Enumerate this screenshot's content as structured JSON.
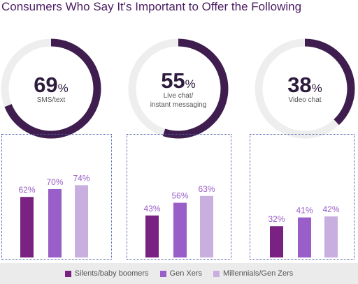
{
  "title": "Consumers Who Say It's Important to Offer the Following",
  "colors": {
    "ring_track": "#eeeeee",
    "ring_fill": "#3f1d4f",
    "series": [
      "#7a2281",
      "#9a5ec8",
      "#c9aee0"
    ],
    "panel_border": "#4a5fa8",
    "value_label": "#9a5ec8"
  },
  "chart_data": [
    {
      "type": "donut",
      "value": 69,
      "value_text": "69",
      "unit": "%",
      "label": [
        "SMS/text"
      ]
    },
    {
      "type": "donut",
      "value": 55,
      "value_text": "55",
      "unit": "%",
      "label": [
        "Live chat/",
        "instant messaging"
      ]
    },
    {
      "type": "donut",
      "value": 38,
      "value_text": "38",
      "unit": "%",
      "label": [
        "Video chat"
      ]
    },
    {
      "type": "bar",
      "series": [
        {
          "name": "Silents/baby boomers",
          "values": [
            62
          ]
        },
        {
          "name": "Gen Xers",
          "values": [
            70
          ]
        },
        {
          "name": "Millennials/Gen Zers",
          "values": [
            74
          ]
        }
      ],
      "value_labels": [
        "62%",
        "70%",
        "74%"
      ],
      "ylim": [
        0,
        100
      ]
    },
    {
      "type": "bar",
      "series": [
        {
          "name": "Silents/baby boomers",
          "values": [
            43
          ]
        },
        {
          "name": "Gen Xers",
          "values": [
            56
          ]
        },
        {
          "name": "Millennials/Gen Zers",
          "values": [
            63
          ]
        }
      ],
      "value_labels": [
        "43%",
        "56%",
        "63%"
      ],
      "ylim": [
        0,
        100
      ]
    },
    {
      "type": "bar",
      "series": [
        {
          "name": "Silents/baby boomers",
          "values": [
            32
          ]
        },
        {
          "name": "Gen Xers",
          "values": [
            41
          ]
        },
        {
          "name": "Millennials/Gen Zers",
          "values": [
            42
          ]
        }
      ],
      "value_labels": [
        "32%",
        "41%",
        "42%"
      ],
      "ylim": [
        0,
        100
      ]
    }
  ],
  "legend": [
    {
      "label": "Silents/baby boomers"
    },
    {
      "label": "Gen Xers"
    },
    {
      "label": "Millennials/Gen Zers"
    }
  ]
}
